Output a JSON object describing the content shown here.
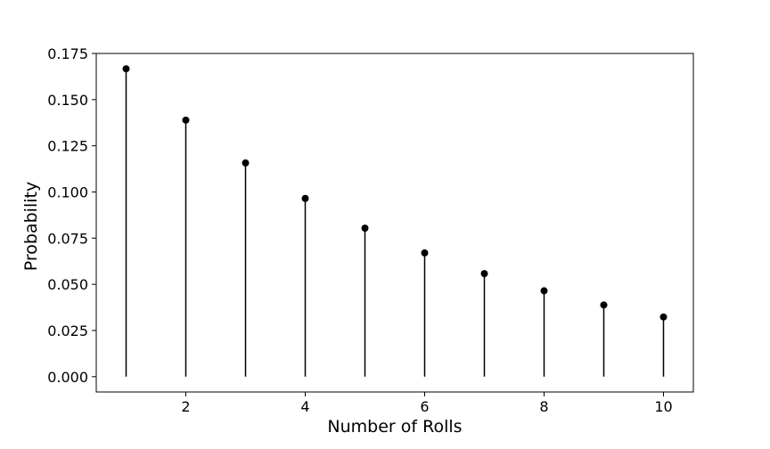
{
  "chart_data": {
    "type": "stem",
    "title": "",
    "xlabel": "Number of Rolls",
    "ylabel": "Probability",
    "x": [
      1,
      2,
      3,
      4,
      5,
      6,
      7,
      8,
      9,
      10
    ],
    "y": [
      0.1667,
      0.1389,
      0.1157,
      0.0965,
      0.0804,
      0.067,
      0.0558,
      0.0465,
      0.0388,
      0.0323
    ],
    "xlim": [
      0.5,
      10.5
    ],
    "ylim": [
      -0.0083,
      0.175
    ],
    "xticks": [
      2,
      4,
      6,
      8,
      10
    ],
    "xtick_labels": [
      "2",
      "4",
      "6",
      "8",
      "10"
    ],
    "yticks": [
      0.0,
      0.025,
      0.05,
      0.075,
      0.1,
      0.125,
      0.15,
      0.175
    ],
    "ytick_labels": [
      "0.000",
      "0.025",
      "0.050",
      "0.075",
      "0.100",
      "0.125",
      "0.150",
      "0.175"
    ],
    "grid": false,
    "legend": "none",
    "colors": {
      "marker": "#000000",
      "stem": "#000000",
      "axes": "#000000",
      "background": "#ffffff"
    }
  }
}
